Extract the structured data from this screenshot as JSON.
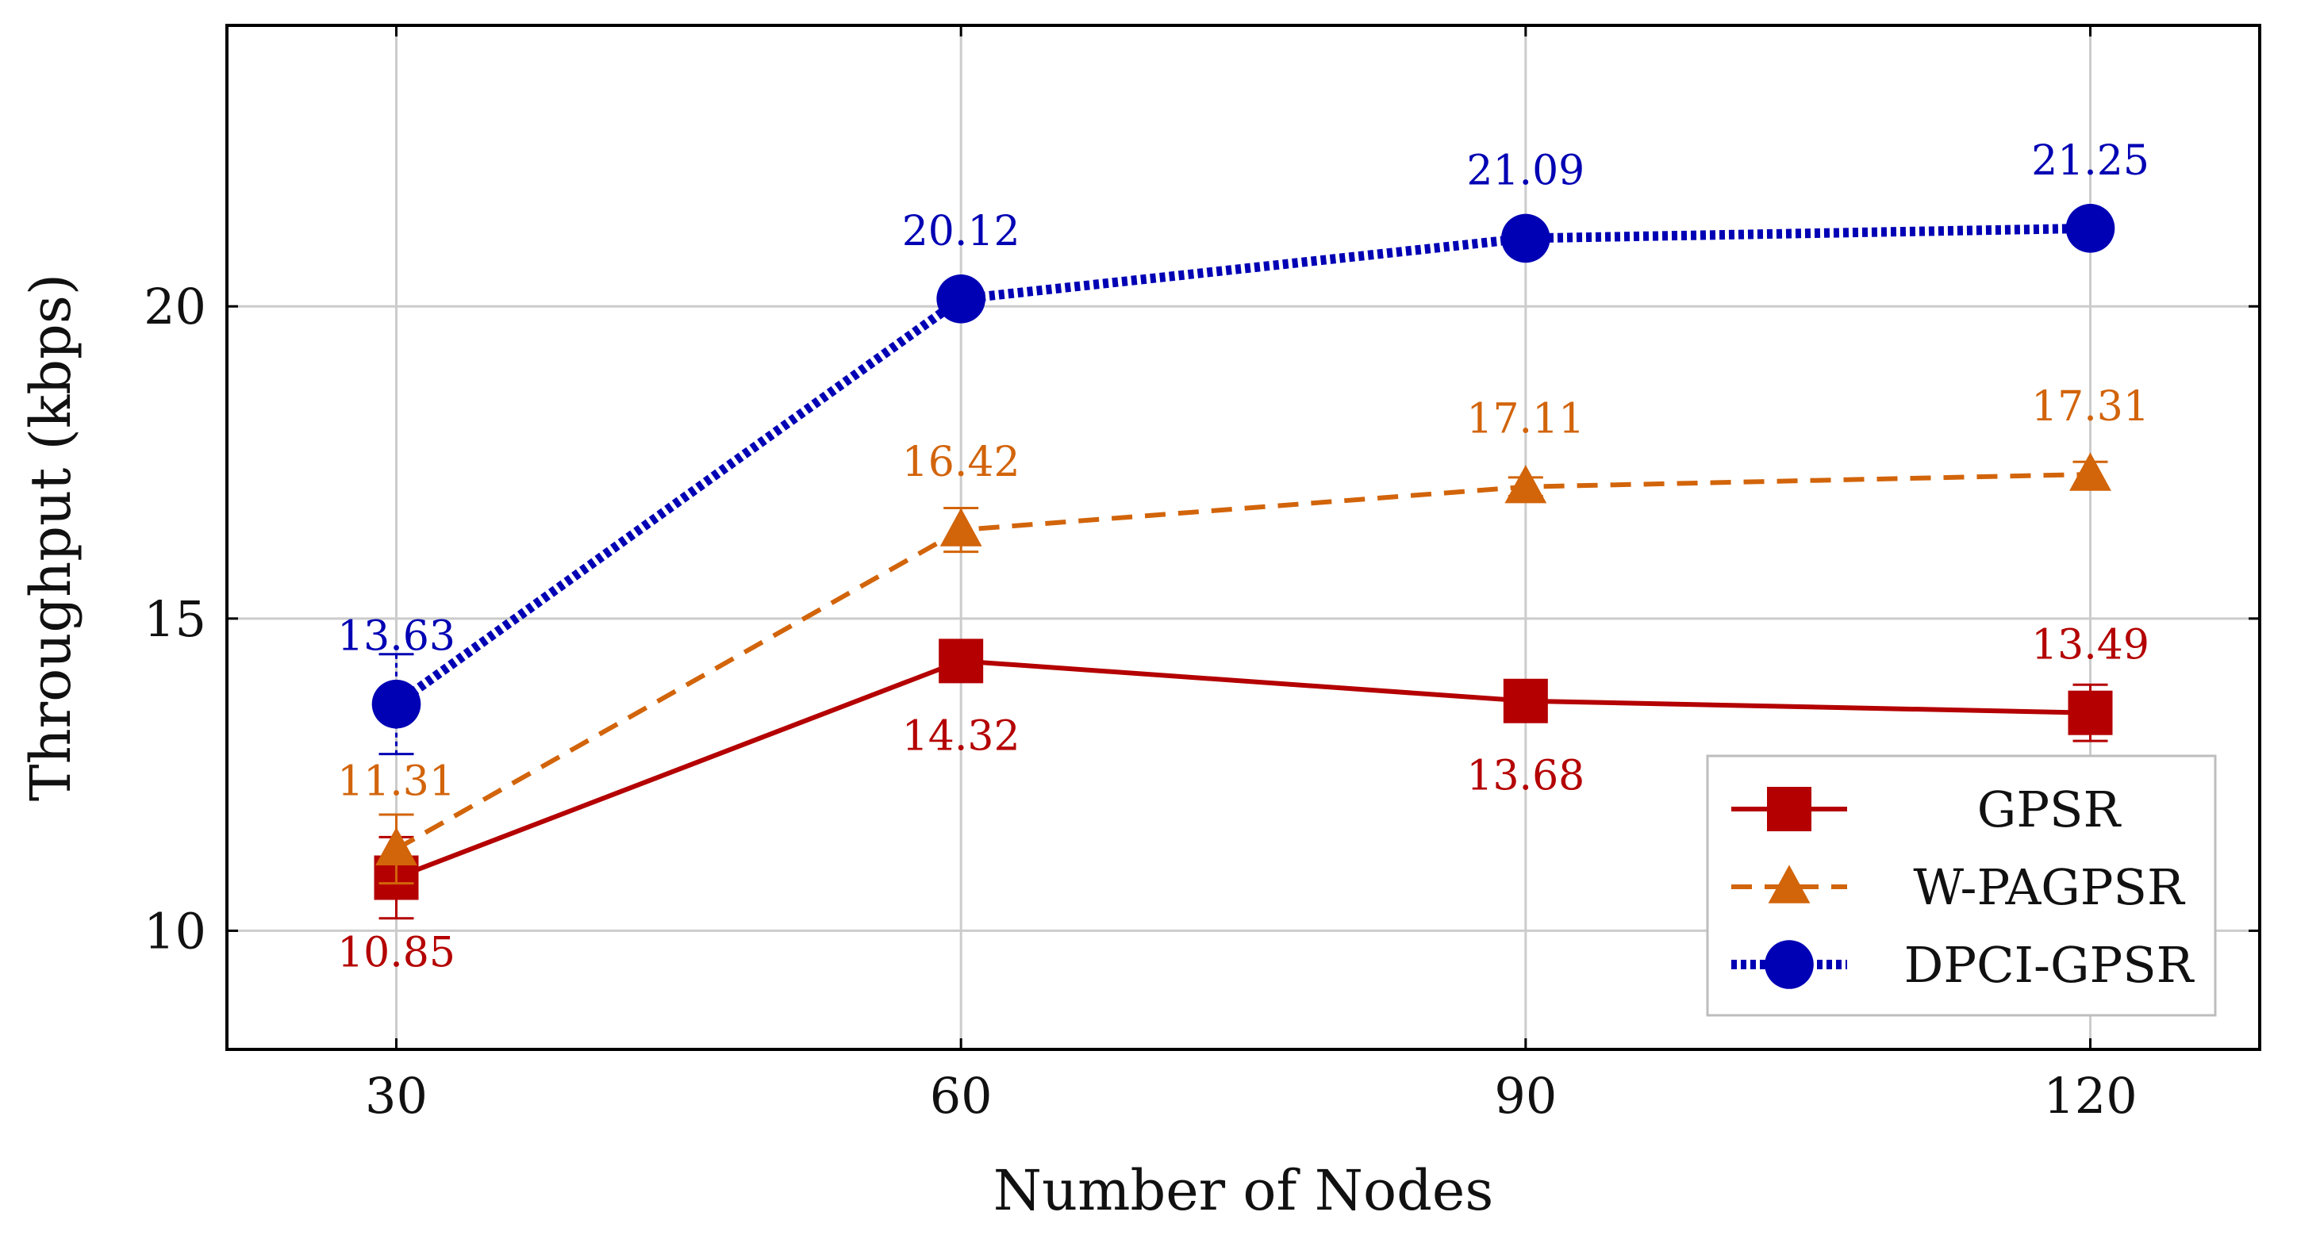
{
  "chart_data": {
    "type": "line",
    "xlabel": "Number of Nodes",
    "ylabel": "Throughput (kbps)",
    "x": [
      30,
      60,
      90,
      120
    ],
    "x_ticks": [
      "30",
      "60",
      "90",
      "120"
    ],
    "y_ticks": [
      "10",
      "15",
      "20"
    ],
    "y_tick_values": [
      10,
      15,
      20
    ],
    "xlim": [
      21,
      129
    ],
    "ylim": [
      8.1,
      24.5
    ],
    "grid": true,
    "legend_position": "bottom-right",
    "series": [
      {
        "name": "GPSR",
        "color": "#b40000",
        "line_style": "solid",
        "marker": "square",
        "values": [
          10.85,
          14.32,
          13.68,
          13.49
        ],
        "labels": [
          "10.85",
          "14.32",
          "13.68",
          "13.49"
        ],
        "label_position": [
          "below",
          "below",
          "below",
          "above"
        ],
        "error": [
          0.65,
          0.25,
          0.2,
          0.45
        ]
      },
      {
        "name": "W-PAGPSR",
        "color": "#d2640a",
        "line_style": "dashed",
        "marker": "triangle",
        "values": [
          11.31,
          16.42,
          17.11,
          17.31
        ],
        "labels": [
          "11.31",
          "16.42",
          "17.11",
          "17.31"
        ],
        "label_position": [
          "above",
          "above",
          "above",
          "above"
        ],
        "error": [
          0.55,
          0.35,
          0.15,
          0.2
        ]
      },
      {
        "name": "DPCI-GPSR",
        "color": "#0000b4",
        "line_style": "dotted",
        "marker": "circle",
        "values": [
          13.63,
          20.12,
          21.09,
          21.25
        ],
        "labels": [
          "13.63",
          "20.12",
          "21.09",
          "21.25"
        ],
        "label_position": [
          "above",
          "above",
          "above",
          "above"
        ],
        "error": [
          0.8,
          0.15,
          0.1,
          0.1
        ]
      }
    ]
  }
}
